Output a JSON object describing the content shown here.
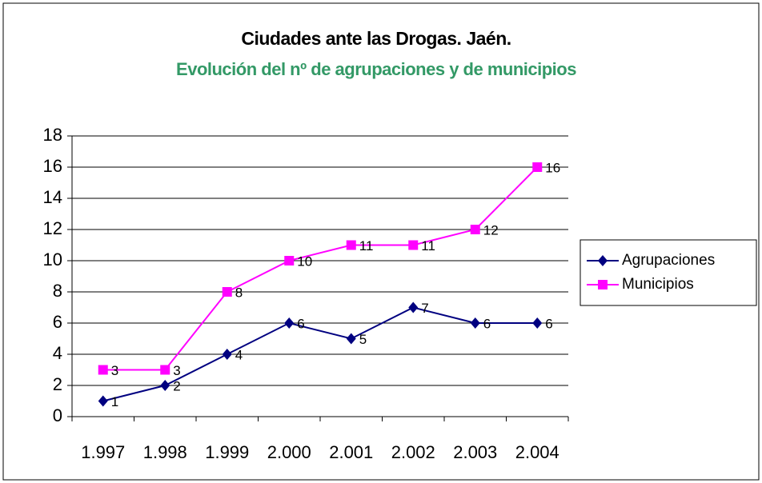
{
  "chart_data": {
    "type": "line",
    "title": "Ciudades ante las Drogas. Jaén.",
    "subtitle": "Evolución del nº de agrupaciones y de municipios",
    "categories": [
      "1.997",
      "1.998",
      "1.999",
      "2.000",
      "2.001",
      "2.002",
      "2.003",
      "2.004"
    ],
    "series": [
      {
        "name": "Agrupaciones",
        "color": "#000080",
        "marker": "diamond",
        "values": [
          1,
          2,
          4,
          6,
          5,
          7,
          6,
          6
        ]
      },
      {
        "name": "Municipios",
        "color": "#ff00ff",
        "marker": "square",
        "values": [
          3,
          3,
          8,
          10,
          11,
          11,
          12,
          16
        ]
      }
    ],
    "ylim": [
      0,
      18
    ],
    "yticks": [
      0,
      2,
      4,
      6,
      8,
      10,
      12,
      14,
      16,
      18
    ],
    "grid": true,
    "legend": "right"
  }
}
